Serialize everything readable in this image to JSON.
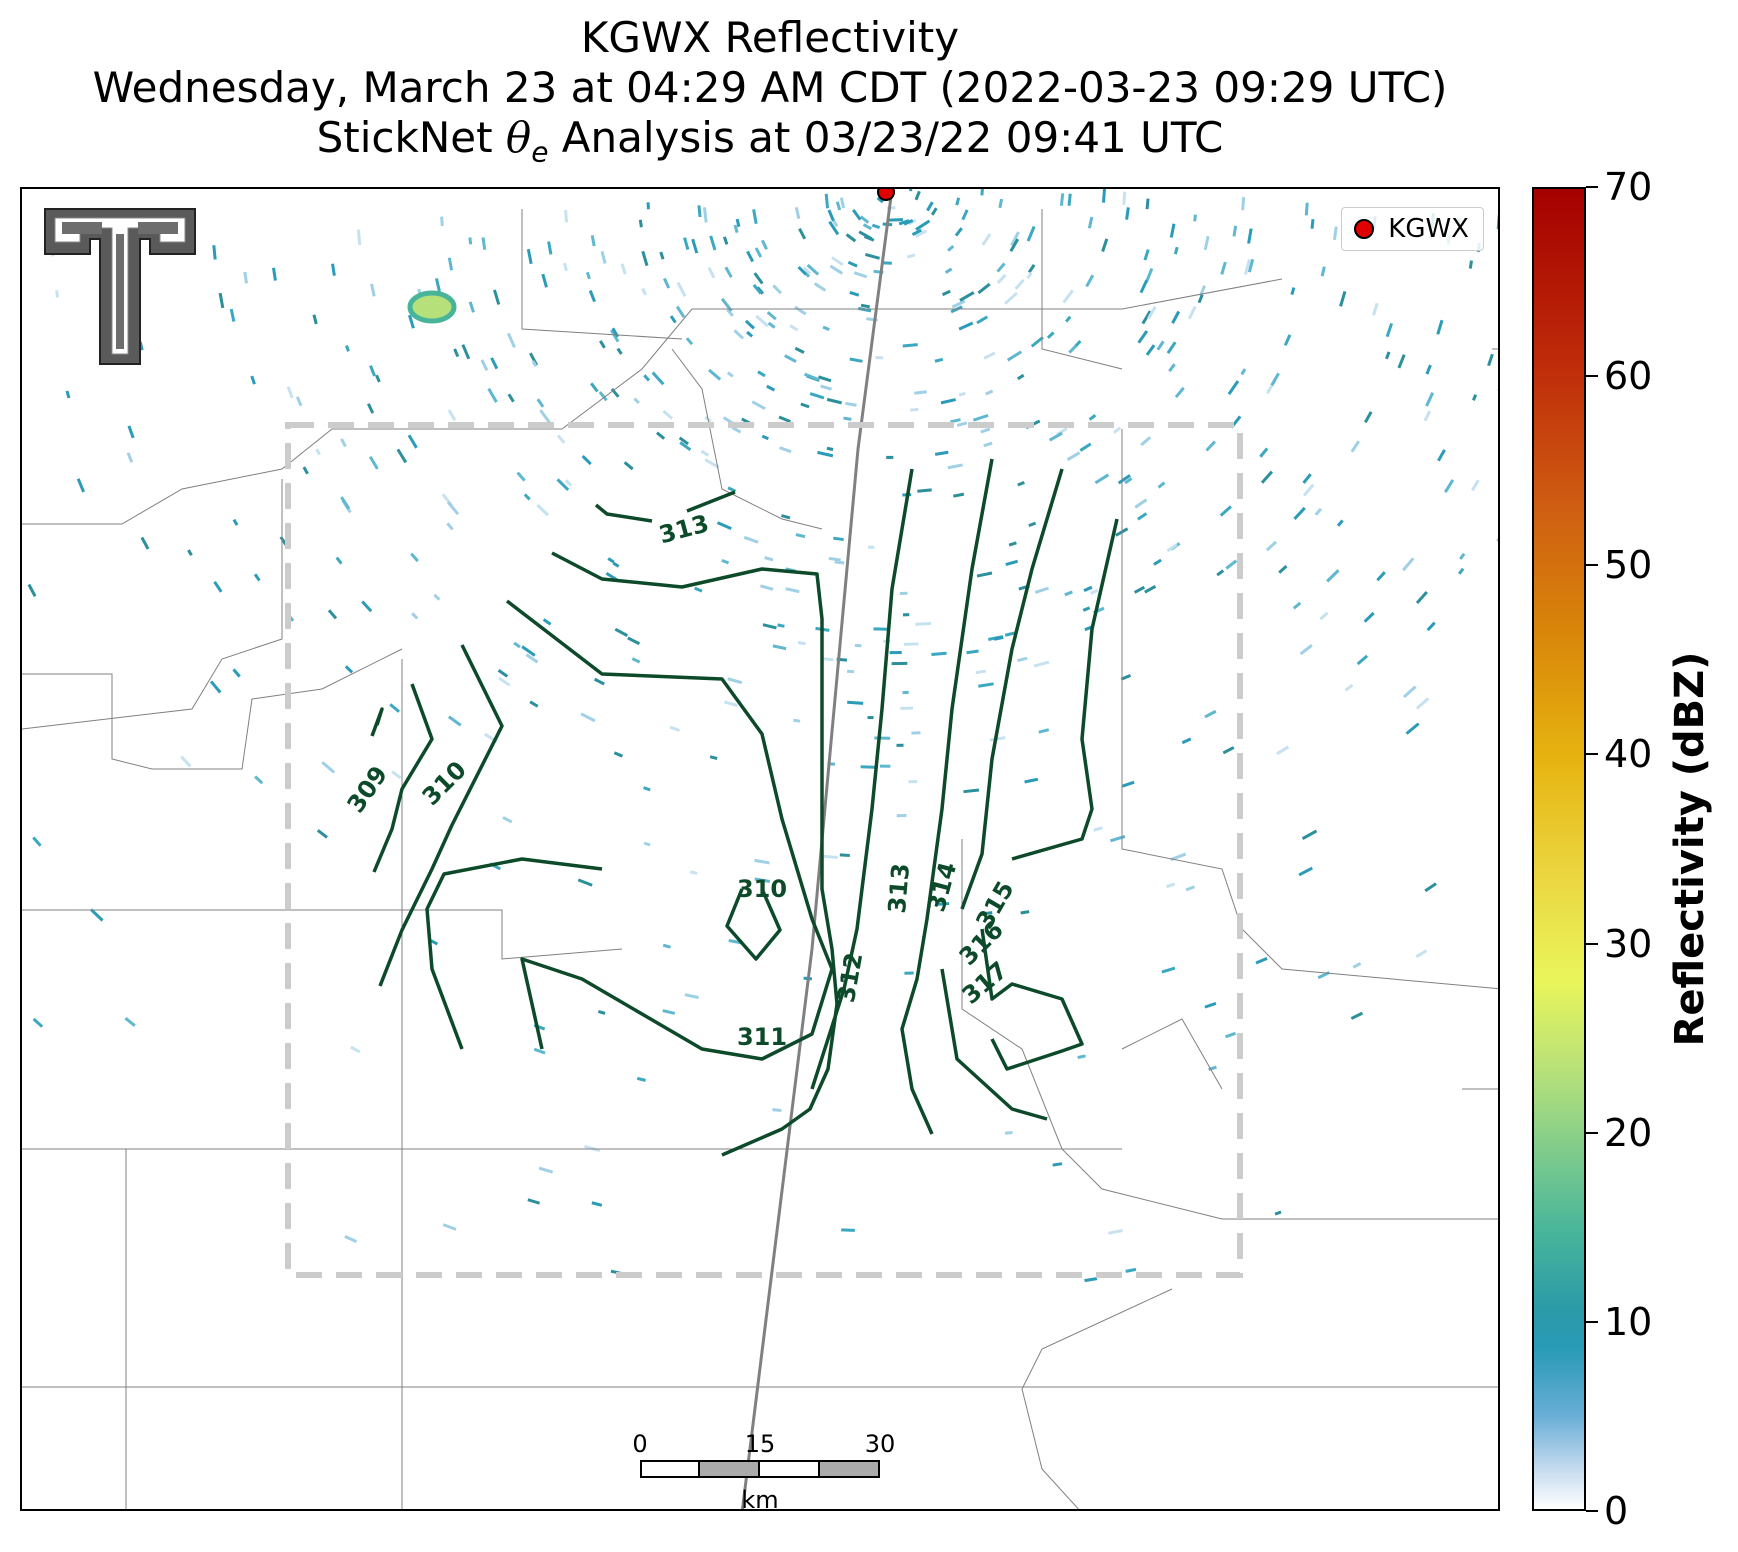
{
  "title": {
    "line1": "KGWX Reflectivity",
    "line2": "Wednesday, March 23 at 04:29 AM CDT (2022-03-23 09:29 UTC)",
    "line3_prefix": "StickNet ",
    "line3_symbol": "θ",
    "line3_sub": "e",
    "line3_suffix": " Analysis at 03/23/22 09:41 UTC"
  },
  "legend": {
    "label": "KGWX",
    "marker_color": "#e00000"
  },
  "colorbar": {
    "label": "Reflectivity (dBZ)",
    "ticks": [
      "0",
      "10",
      "20",
      "30",
      "40",
      "50",
      "60",
      "70"
    ],
    "range": [
      0,
      70
    ]
  },
  "scalebar": {
    "labels": [
      "0",
      "15",
      "30"
    ],
    "unit": "km"
  },
  "contours": {
    "color": "#0d4a2a",
    "labels": [
      "309",
      "310",
      "310",
      "311",
      "312",
      "313",
      "313",
      "314",
      "315",
      "316",
      "317"
    ]
  },
  "colors": {
    "contour": "#0d4a2a",
    "analysis_box": "#cccccc",
    "radar": "#e00000"
  }
}
